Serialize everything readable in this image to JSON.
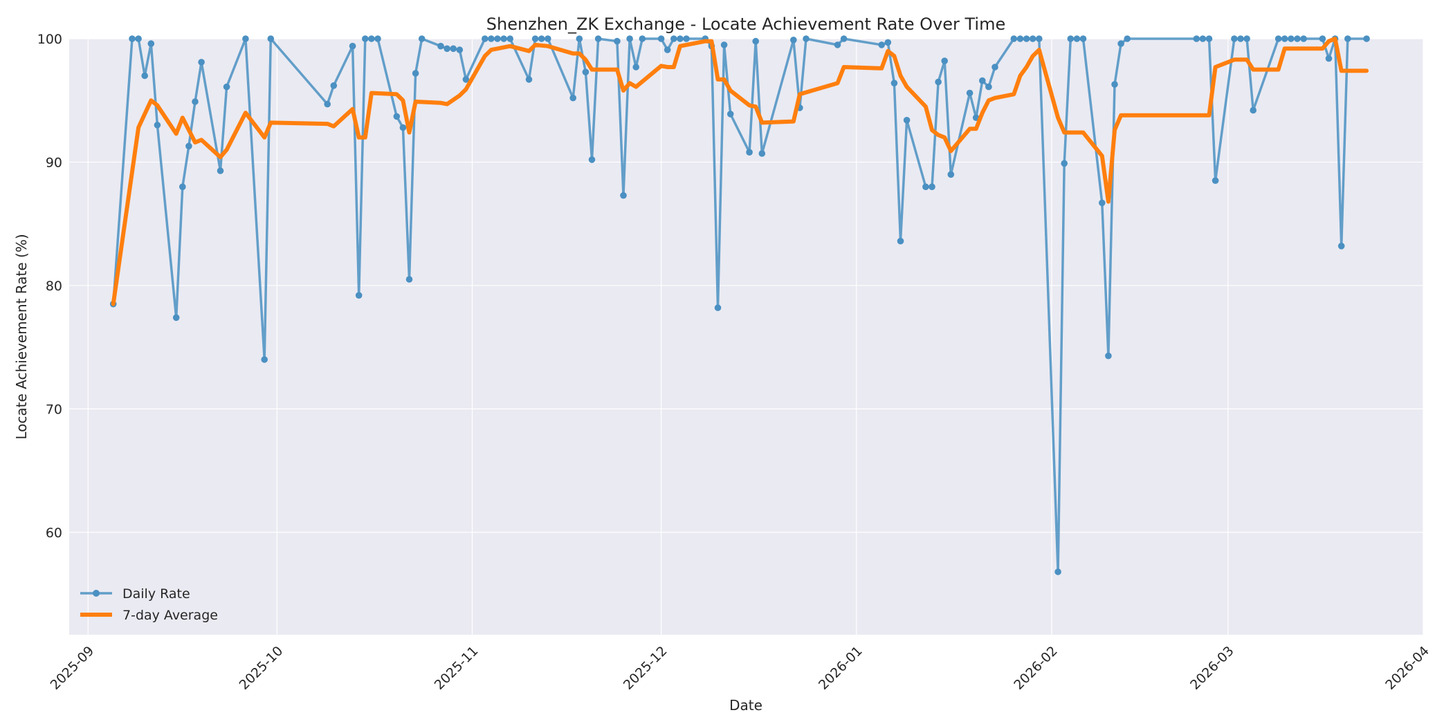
{
  "chart_data": {
    "type": "line",
    "title": "Shenzhen_ZK Exchange - Locate Achievement Rate Over Time",
    "xlabel": "Date",
    "ylabel": "Locate Achievement Rate (%)",
    "xlim": [
      "2025-08-29",
      "2026-04-01"
    ],
    "ylim": [
      51.7,
      100
    ],
    "x_ticks": [
      "2025-09-01",
      "2025-10-01",
      "2025-11-01",
      "2025-12-01",
      "2026-01-01",
      "2026-02-01",
      "2026-03-01",
      "2026-04-01"
    ],
    "x_tick_labels": [
      "2025-09",
      "2025-10",
      "2025-11",
      "2025-12",
      "2026-01",
      "2026-02",
      "2026-03",
      "2026-04"
    ],
    "y_ticks": [
      60,
      70,
      80,
      90,
      100
    ],
    "y_tick_labels": [
      "60",
      "70",
      "80",
      "90",
      "100"
    ],
    "grid": true,
    "legend_position": "lower-left",
    "colors": {
      "daily": "#4a90c2",
      "average": "#ff7f0e",
      "plot_background": "#eaeaf2",
      "grid": "#ffffff"
    },
    "series": [
      {
        "name": "Daily Rate",
        "style": "line-marker",
        "points": [
          [
            "2025-09-05",
            78.5
          ],
          [
            "2025-09-08",
            100
          ],
          [
            "2025-09-09",
            100
          ],
          [
            "2025-09-10",
            97
          ],
          [
            "2025-09-11",
            99.6
          ],
          [
            "2025-09-12",
            93
          ],
          [
            "2025-09-15",
            77.4
          ],
          [
            "2025-09-16",
            88
          ],
          [
            "2025-09-17",
            91.3
          ],
          [
            "2025-09-18",
            94.9
          ],
          [
            "2025-09-19",
            98.1
          ],
          [
            "2025-09-22",
            89.3
          ],
          [
            "2025-09-23",
            96.1
          ],
          [
            "2025-09-26",
            100
          ],
          [
            "2025-09-29",
            74
          ],
          [
            "2025-09-30",
            100
          ],
          [
            "2025-10-09",
            94.7
          ],
          [
            "2025-10-10",
            96.2
          ],
          [
            "2025-10-13",
            99.4
          ],
          [
            "2025-10-14",
            79.2
          ],
          [
            "2025-10-15",
            100
          ],
          [
            "2025-10-16",
            100
          ],
          [
            "2025-10-17",
            100
          ],
          [
            "2025-10-20",
            93.7
          ],
          [
            "2025-10-21",
            92.8
          ],
          [
            "2025-10-22",
            80.5
          ],
          [
            "2025-10-23",
            97.2
          ],
          [
            "2025-10-24",
            100
          ],
          [
            "2025-10-27",
            99.4
          ],
          [
            "2025-10-28",
            99.2
          ],
          [
            "2025-10-29",
            99.2
          ],
          [
            "2025-10-30",
            99.1
          ],
          [
            "2025-10-31",
            96.7
          ],
          [
            "2025-11-03",
            100
          ],
          [
            "2025-11-04",
            100
          ],
          [
            "2025-11-05",
            100
          ],
          [
            "2025-11-06",
            100
          ],
          [
            "2025-11-07",
            100
          ],
          [
            "2025-11-10",
            96.7
          ],
          [
            "2025-11-11",
            100
          ],
          [
            "2025-11-12",
            100
          ],
          [
            "2025-11-13",
            100
          ],
          [
            "2025-11-17",
            95.2
          ],
          [
            "2025-11-18",
            100
          ],
          [
            "2025-11-19",
            97.3
          ],
          [
            "2025-11-20",
            90.2
          ],
          [
            "2025-11-21",
            100
          ],
          [
            "2025-11-24",
            99.8
          ],
          [
            "2025-11-25",
            87.3
          ],
          [
            "2025-11-26",
            100
          ],
          [
            "2025-11-27",
            97.7
          ],
          [
            "2025-11-28",
            100
          ],
          [
            "2025-12-01",
            100
          ],
          [
            "2025-12-02",
            99.1
          ],
          [
            "2025-12-03",
            100
          ],
          [
            "2025-12-04",
            100
          ],
          [
            "2025-12-05",
            100
          ],
          [
            "2025-12-08",
            100
          ],
          [
            "2025-12-09",
            99.4
          ],
          [
            "2025-12-10",
            78.2
          ],
          [
            "2025-12-11",
            99.5
          ],
          [
            "2025-12-12",
            93.9
          ],
          [
            "2025-12-15",
            90.8
          ],
          [
            "2025-12-16",
            99.8
          ],
          [
            "2025-12-17",
            90.7
          ],
          [
            "2025-12-22",
            99.9
          ],
          [
            "2025-12-23",
            94.4
          ],
          [
            "2025-12-24",
            100
          ],
          [
            "2025-12-29",
            99.5
          ],
          [
            "2025-12-30",
            100
          ],
          [
            "2026-01-05",
            99.5
          ],
          [
            "2026-01-06",
            99.7
          ],
          [
            "2026-01-07",
            96.4
          ],
          [
            "2026-01-08",
            83.6
          ],
          [
            "2026-01-09",
            93.4
          ],
          [
            "2026-01-12",
            88
          ],
          [
            "2026-01-13",
            88
          ],
          [
            "2026-01-14",
            96.5
          ],
          [
            "2026-01-15",
            98.2
          ],
          [
            "2026-01-16",
            89
          ],
          [
            "2026-01-19",
            95.6
          ],
          [
            "2026-01-20",
            93.6
          ],
          [
            "2026-01-21",
            96.6
          ],
          [
            "2026-01-22",
            96.1
          ],
          [
            "2026-01-23",
            97.7
          ],
          [
            "2026-01-26",
            100
          ],
          [
            "2026-01-27",
            100
          ],
          [
            "2026-01-28",
            100
          ],
          [
            "2026-01-29",
            100
          ],
          [
            "2026-01-30",
            100
          ],
          [
            "2026-02-02",
            56.8
          ],
          [
            "2026-02-03",
            89.9
          ],
          [
            "2026-02-04",
            100
          ],
          [
            "2026-02-05",
            100
          ],
          [
            "2026-02-06",
            100
          ],
          [
            "2026-02-09",
            86.7
          ],
          [
            "2026-02-10",
            74.3
          ],
          [
            "2026-02-11",
            96.3
          ],
          [
            "2026-02-12",
            99.6
          ],
          [
            "2026-02-13",
            100
          ],
          [
            "2026-02-24",
            100
          ],
          [
            "2026-02-25",
            100
          ],
          [
            "2026-02-26",
            100
          ],
          [
            "2026-02-27",
            88.5
          ],
          [
            "2026-03-02",
            100
          ],
          [
            "2026-03-03",
            100
          ],
          [
            "2026-03-04",
            100
          ],
          [
            "2026-03-05",
            94.2
          ],
          [
            "2026-03-09",
            100
          ],
          [
            "2026-03-10",
            100
          ],
          [
            "2026-03-11",
            100
          ],
          [
            "2026-03-12",
            100
          ],
          [
            "2026-03-13",
            100
          ],
          [
            "2026-03-16",
            100
          ],
          [
            "2026-03-17",
            98.4
          ],
          [
            "2026-03-18",
            100
          ],
          [
            "2026-03-19",
            83.2
          ],
          [
            "2026-03-20",
            100
          ],
          [
            "2026-03-23",
            100
          ]
        ]
      },
      {
        "name": "7-day Average",
        "style": "line",
        "points": [
          [
            "2025-09-05",
            78.5
          ],
          [
            "2025-09-09",
            92.8
          ],
          [
            "2025-09-11",
            95
          ],
          [
            "2025-09-12",
            94.6
          ],
          [
            "2025-09-15",
            92.3
          ],
          [
            "2025-09-16",
            93.6
          ],
          [
            "2025-09-18",
            91.6
          ],
          [
            "2025-09-19",
            91.8
          ],
          [
            "2025-09-22",
            90.4
          ],
          [
            "2025-09-23",
            91
          ],
          [
            "2025-09-26",
            94
          ],
          [
            "2025-09-29",
            92
          ],
          [
            "2025-09-30",
            93.2
          ],
          [
            "2025-10-09",
            93.1
          ],
          [
            "2025-10-10",
            92.9
          ],
          [
            "2025-10-13",
            94.3
          ],
          [
            "2025-10-14",
            92
          ],
          [
            "2025-10-15",
            92
          ],
          [
            "2025-10-16",
            95.6
          ],
          [
            "2025-10-20",
            95.5
          ],
          [
            "2025-10-21",
            95
          ],
          [
            "2025-10-22",
            92.4
          ],
          [
            "2025-10-23",
            94.9
          ],
          [
            "2025-10-27",
            94.8
          ],
          [
            "2025-10-28",
            94.7
          ],
          [
            "2025-10-30",
            95.4
          ],
          [
            "2025-10-31",
            95.9
          ],
          [
            "2025-11-03",
            98.6
          ],
          [
            "2025-11-04",
            99.1
          ],
          [
            "2025-11-05",
            99.2
          ],
          [
            "2025-11-07",
            99.4
          ],
          [
            "2025-11-10",
            99
          ],
          [
            "2025-11-11",
            99.5
          ],
          [
            "2025-11-13",
            99.4
          ],
          [
            "2025-11-17",
            98.8
          ],
          [
            "2025-11-18",
            98.8
          ],
          [
            "2025-11-19",
            98.3
          ],
          [
            "2025-11-20",
            97.5
          ],
          [
            "2025-11-24",
            97.5
          ],
          [
            "2025-11-25",
            95.8
          ],
          [
            "2025-11-26",
            96.4
          ],
          [
            "2025-11-27",
            96.1
          ],
          [
            "2025-12-01",
            97.8
          ],
          [
            "2025-12-02",
            97.7
          ],
          [
            "2025-12-03",
            97.7
          ],
          [
            "2025-12-04",
            99.4
          ],
          [
            "2025-12-05",
            99.5
          ],
          [
            "2025-12-08",
            99.8
          ],
          [
            "2025-12-09",
            99.8
          ],
          [
            "2025-12-10",
            96.7
          ],
          [
            "2025-12-11",
            96.7
          ],
          [
            "2025-12-12",
            95.8
          ],
          [
            "2025-12-15",
            94.6
          ],
          [
            "2025-12-16",
            94.5
          ],
          [
            "2025-12-17",
            93.2
          ],
          [
            "2025-12-22",
            93.3
          ],
          [
            "2025-12-23",
            95.5
          ],
          [
            "2025-12-29",
            96.4
          ],
          [
            "2025-12-30",
            97.7
          ],
          [
            "2026-01-05",
            97.6
          ],
          [
            "2026-01-06",
            99
          ],
          [
            "2026-01-07",
            98.6
          ],
          [
            "2026-01-08",
            97
          ],
          [
            "2026-01-09",
            96.1
          ],
          [
            "2026-01-12",
            94.5
          ],
          [
            "2026-01-13",
            92.6
          ],
          [
            "2026-01-14",
            92.2
          ],
          [
            "2026-01-15",
            92
          ],
          [
            "2026-01-16",
            90.9
          ],
          [
            "2026-01-19",
            92.7
          ],
          [
            "2026-01-20",
            92.7
          ],
          [
            "2026-01-21",
            94
          ],
          [
            "2026-01-22",
            95
          ],
          [
            "2026-01-23",
            95.2
          ],
          [
            "2026-01-26",
            95.5
          ],
          [
            "2026-01-27",
            97
          ],
          [
            "2026-01-28",
            97.7
          ],
          [
            "2026-01-29",
            98.6
          ],
          [
            "2026-01-30",
            99.1
          ],
          [
            "2026-02-02",
            93.6
          ],
          [
            "2026-02-03",
            92.4
          ],
          [
            "2026-02-06",
            92.4
          ],
          [
            "2026-02-09",
            90.5
          ],
          [
            "2026-02-10",
            86.8
          ],
          [
            "2026-02-11",
            92.6
          ],
          [
            "2026-02-12",
            93.8
          ],
          [
            "2026-02-13",
            93.8
          ],
          [
            "2026-02-26",
            93.8
          ],
          [
            "2026-02-27",
            97.7
          ],
          [
            "2026-03-02",
            98.3
          ],
          [
            "2026-03-04",
            98.3
          ],
          [
            "2026-03-05",
            97.5
          ],
          [
            "2026-03-09",
            97.5
          ],
          [
            "2026-03-10",
            99.2
          ],
          [
            "2026-03-16",
            99.2
          ],
          [
            "2026-03-17",
            99.8
          ],
          [
            "2026-03-18",
            100
          ],
          [
            "2026-03-19",
            97.4
          ],
          [
            "2026-03-23",
            97.4
          ]
        ]
      }
    ]
  }
}
